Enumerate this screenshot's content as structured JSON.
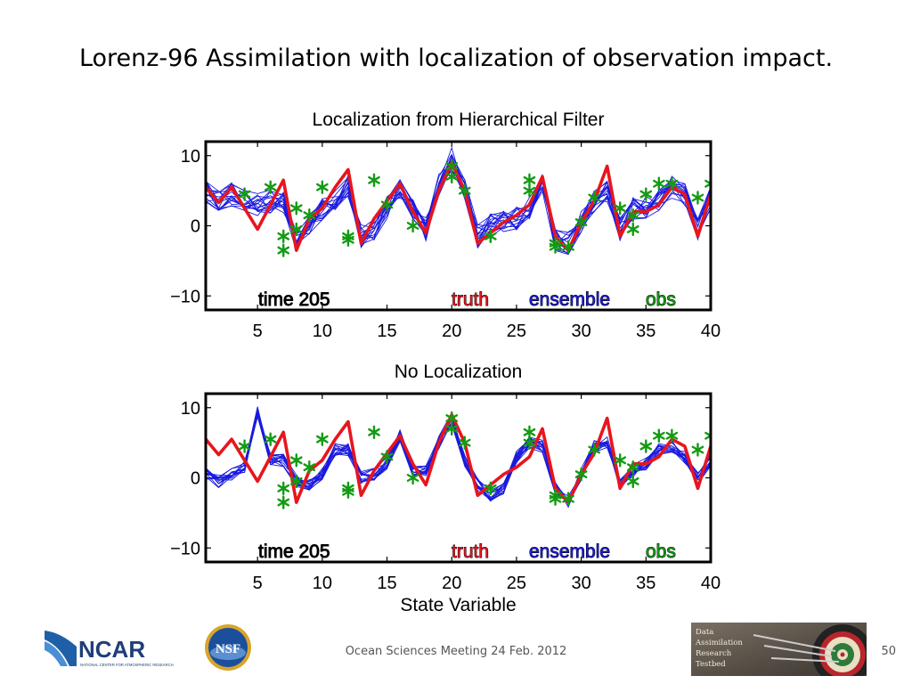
{
  "slide": {
    "title": "Lorenz-96 Assimilation with localization of observation impact.",
    "footer": "Ocean Sciences Meeting 24 Feb. 2012",
    "page_number": "50",
    "logos": {
      "ncar": {
        "name": "NCAR",
        "subtitle": "NATIONAL CENTER FOR ATMOSPHERIC RESEARCH"
      },
      "nsf": {
        "name": "NSF"
      },
      "dart": {
        "lines": [
          "Data",
          "Assimilation",
          "Research",
          "Testbed"
        ]
      }
    }
  },
  "chart_data": [
    {
      "type": "line",
      "title": "Localization from Hierarchical Filter",
      "xlabel": "",
      "ylabel": "",
      "xlim": [
        1,
        40
      ],
      "ylim": [
        -12,
        12
      ],
      "xticks": [
        5,
        10,
        15,
        20,
        25,
        30,
        35,
        40
      ],
      "yticks": [
        -10,
        0,
        10
      ],
      "ytick_labels": [
        "−10",
        "0",
        "10"
      ],
      "labels": {
        "time": "time 205",
        "truth": "truth",
        "ensemble": "ensemble",
        "obs": "obs"
      },
      "truth": [
        5.5,
        3.3,
        5.5,
        2.5,
        -0.5,
        3.0,
        6.5,
        -3.5,
        1.0,
        2.5,
        5.5,
        8.0,
        -2.5,
        1.0,
        3.5,
        6.0,
        2.0,
        -1.0,
        5.0,
        9.0,
        5.0,
        -2.5,
        -1.0,
        0.5,
        1.5,
        3.0,
        7.0,
        -1.5,
        -3.5,
        0.5,
        3.5,
        8.5,
        -1.5,
        2.0,
        2.0,
        3.0,
        5.5,
        4.5,
        -1.5,
        4.5
      ],
      "ensemble_mean": [
        5.0,
        3.5,
        4.5,
        3.5,
        3.0,
        3.5,
        3.5,
        -2.5,
        0.5,
        2.5,
        4.0,
        5.5,
        -1.5,
        -0.5,
        2.5,
        5.5,
        2.5,
        -0.5,
        6.0,
        9.5,
        5.5,
        -1.5,
        0.0,
        0.5,
        1.0,
        2.5,
        6.5,
        -2.0,
        -2.5,
        0.5,
        3.5,
        5.0,
        -0.5,
        2.5,
        2.5,
        3.5,
        5.5,
        4.5,
        -0.5,
        4.0
      ],
      "ensemble_spread": 1.7,
      "ensemble_members": 16,
      "obs": [
        [
          4,
          4.5
        ],
        [
          6,
          5.5
        ],
        [
          7,
          -1.5
        ],
        [
          7,
          -3.5
        ],
        [
          8,
          -0.5
        ],
        [
          8,
          2.5
        ],
        [
          9,
          1.5
        ],
        [
          10,
          5.5
        ],
        [
          12,
          -1.5
        ],
        [
          12,
          -2.0
        ],
        [
          14,
          6.5
        ],
        [
          15,
          3.0
        ],
        [
          17,
          0.0
        ],
        [
          20,
          8.5
        ],
        [
          20,
          7.0
        ],
        [
          21,
          5.0
        ],
        [
          23,
          -1.5
        ],
        [
          26,
          5.0
        ],
        [
          26,
          6.5
        ],
        [
          28,
          -2.5
        ],
        [
          28,
          -3.0
        ],
        [
          29,
          -3.0
        ],
        [
          30,
          0.5
        ],
        [
          31,
          4.0
        ],
        [
          33,
          2.5
        ],
        [
          34,
          -0.5
        ],
        [
          34,
          1.5
        ],
        [
          35,
          4.5
        ],
        [
          36,
          6.0
        ],
        [
          37,
          6.0
        ],
        [
          39,
          4.0
        ],
        [
          40,
          6.0
        ]
      ],
      "colors": {
        "truth": "#e8151d",
        "ensemble": "#1a1adf",
        "obs": "#139b13"
      }
    },
    {
      "type": "line",
      "title": "No Localization",
      "xlabel": "State Variable",
      "ylabel": "",
      "xlim": [
        1,
        40
      ],
      "ylim": [
        -12,
        12
      ],
      "xticks": [
        5,
        10,
        15,
        20,
        25,
        30,
        35,
        40
      ],
      "yticks": [
        -10,
        0,
        10
      ],
      "ytick_labels": [
        "−10",
        "0",
        "10"
      ],
      "labels": {
        "time": "time 205",
        "truth": "truth",
        "ensemble": "ensemble",
        "obs": "obs"
      },
      "truth": [
        5.5,
        3.3,
        5.5,
        2.5,
        -0.5,
        3.0,
        6.5,
        -3.5,
        1.0,
        2.5,
        5.5,
        8.0,
        -2.5,
        1.0,
        3.5,
        6.0,
        2.0,
        -1.0,
        5.0,
        9.0,
        5.0,
        -2.5,
        -1.0,
        0.5,
        1.5,
        3.0,
        7.0,
        -1.5,
        -3.5,
        0.5,
        3.5,
        8.5,
        -1.5,
        2.0,
        2.0,
        3.0,
        5.5,
        4.5,
        -1.5,
        4.5
      ],
      "ensemble_mean": [
        0.5,
        -0.5,
        0.5,
        1.5,
        9.5,
        2.5,
        2.5,
        -0.5,
        -1.0,
        0.5,
        4.0,
        4.0,
        0.0,
        0.5,
        2.0,
        6.0,
        1.0,
        1.0,
        5.0,
        8.5,
        2.5,
        -1.0,
        -2.5,
        -1.5,
        3.0,
        5.0,
        4.5,
        -1.5,
        -3.5,
        0.5,
        4.5,
        5.0,
        -1.0,
        1.0,
        2.0,
        4.0,
        4.5,
        3.0,
        0.0,
        2.5
      ],
      "ensemble_spread": 0.9,
      "ensemble_members": 16,
      "obs": [
        [
          4,
          4.5
        ],
        [
          6,
          5.5
        ],
        [
          7,
          -1.5
        ],
        [
          7,
          -3.5
        ],
        [
          8,
          -0.5
        ],
        [
          8,
          2.5
        ],
        [
          9,
          1.5
        ],
        [
          10,
          5.5
        ],
        [
          12,
          -1.5
        ],
        [
          12,
          -2.0
        ],
        [
          14,
          6.5
        ],
        [
          15,
          3.0
        ],
        [
          17,
          0.0
        ],
        [
          20,
          8.5
        ],
        [
          20,
          7.0
        ],
        [
          21,
          5.0
        ],
        [
          23,
          -1.5
        ],
        [
          26,
          5.0
        ],
        [
          26,
          6.5
        ],
        [
          28,
          -2.5
        ],
        [
          28,
          -3.0
        ],
        [
          29,
          -3.0
        ],
        [
          30,
          0.5
        ],
        [
          31,
          4.0
        ],
        [
          33,
          2.5
        ],
        [
          34,
          -0.5
        ],
        [
          34,
          1.5
        ],
        [
          35,
          4.5
        ],
        [
          36,
          6.0
        ],
        [
          37,
          6.0
        ],
        [
          39,
          4.0
        ],
        [
          40,
          6.0
        ]
      ],
      "colors": {
        "truth": "#e8151d",
        "ensemble": "#1a1adf",
        "obs": "#139b13"
      }
    }
  ]
}
